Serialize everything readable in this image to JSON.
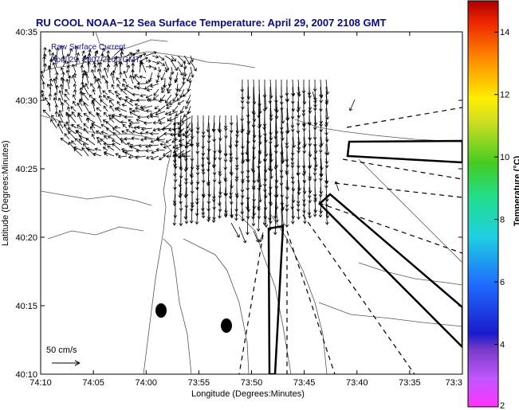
{
  "chart_data": {
    "type": "vector-field-map",
    "title": "RU COOL  NOAA−12  Sea Surface Temperature:  April 29, 2007 2108 GMT",
    "xlabel": "Longitude (Degrees:Minutes)",
    "ylabel": "Latitude (Degrees:Minutes)",
    "x_tick_labels": [
      "74:10",
      "74:05",
      "74:00",
      "73:55",
      "73:50",
      "73:45",
      "73:40",
      "73:35",
      "73:3"
    ],
    "y_tick_labels": [
      "40:10",
      "40:15",
      "40:20",
      "40:25",
      "40:30",
      "40:35"
    ],
    "annotations": [
      "Raw Surface Current",
      "April 29, 2007 2100 GMT"
    ],
    "scale_label": "50 cm/s",
    "colorbar": {
      "label": "Temperature (°C)",
      "ticks": [
        "2",
        "4",
        "6",
        "8",
        "10",
        "12",
        "14"
      ],
      "range": [
        2,
        15
      ]
    }
  }
}
